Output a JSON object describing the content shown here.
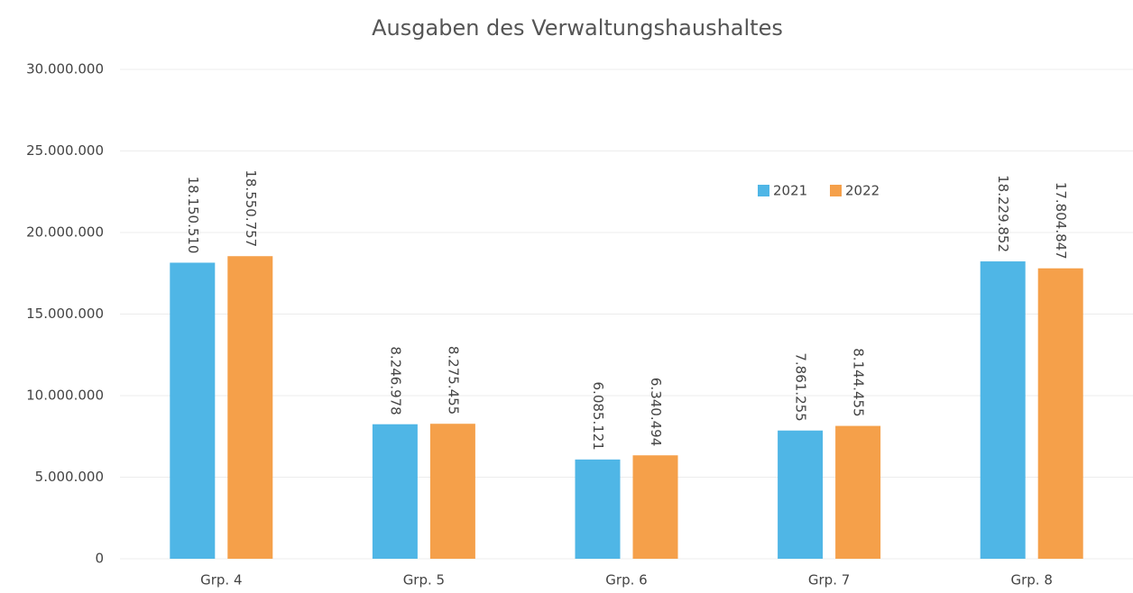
{
  "chart_data": {
    "type": "bar",
    "title": "Ausgaben des Verwaltungshaushaltes",
    "categories": [
      "Grp. 4",
      "Grp. 5",
      "Grp. 6",
      "Grp. 7",
      "Grp. 8"
    ],
    "series": [
      {
        "name": "2021",
        "color": "#4fb6e6",
        "values": [
          18150510,
          8246978,
          6085121,
          7861255,
          18229852
        ],
        "value_labels": [
          "18.150.510",
          "8.246.978",
          "6.085.121",
          "7.861.255",
          "18.229.852"
        ]
      },
      {
        "name": "2022",
        "color": "#f5a04a",
        "values": [
          18550757,
          8275455,
          6340494,
          8144455,
          17804847
        ],
        "value_labels": [
          "18.550.757",
          "8.275.455",
          "6.340.494",
          "8.144.455",
          "17.804.847"
        ]
      }
    ],
    "ylim": [
      0,
      30000000
    ],
    "yticks": [
      {
        "value": 0,
        "label": "0"
      },
      {
        "value": 5000000,
        "label": "5.000.000"
      },
      {
        "value": 10000000,
        "label": "10.000.000"
      },
      {
        "value": 15000000,
        "label": "15.000.000"
      },
      {
        "value": 20000000,
        "label": "20.000.000"
      },
      {
        "value": 25000000,
        "label": "25.000.000"
      },
      {
        "value": 30000000,
        "label": "30.000.000"
      }
    ],
    "grid": true,
    "legend": "upper right"
  }
}
